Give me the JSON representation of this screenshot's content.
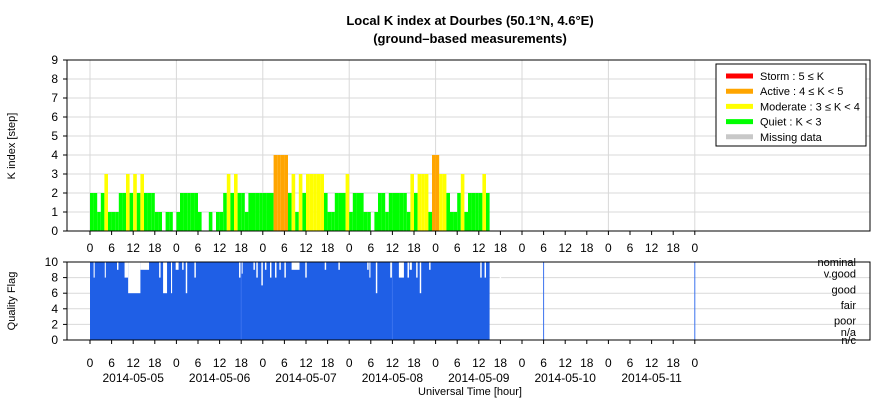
{
  "chart_data": [
    {
      "type": "bar",
      "panel": "k-index",
      "title": "Local K index at Dourbes (50.1°N, 4.6°E)",
      "subtitle": "(ground–based measurements)",
      "ylabel": "K index [step]",
      "xlabel": "",
      "ylim": [
        0,
        9
      ],
      "yticks": [
        "0",
        "1",
        "2",
        "3",
        "4",
        "5",
        "6",
        "7",
        "8",
        "9"
      ],
      "x_hour_ticks": [
        "0",
        "6",
        "12",
        "18",
        "0",
        "6",
        "12",
        "18",
        "0",
        "6",
        "12",
        "18",
        "0",
        "6",
        "12",
        "18",
        "0",
        "6",
        "12",
        "18",
        "0",
        "6",
        "12",
        "18",
        "0",
        "6",
        "12",
        "18",
        "0"
      ],
      "grid": true,
      "legend_position": "top-right",
      "legend": [
        {
          "label": "Storm : 5 ≤ K",
          "color": "#ff0000"
        },
        {
          "label": "Active : 4 ≤ K < 5",
          "color": "#ffa500"
        },
        {
          "label": "Moderate : 3 ≤ K < 4",
          "color": "#ffff00"
        },
        {
          "label": "Quiet : K < 3",
          "color": "#00ff00"
        },
        {
          "label": "Missing data",
          "color": "#c8c8c8"
        }
      ],
      "colors": {
        "storm": "#ff0000",
        "active": "#ffa500",
        "moderate": "#ffff00",
        "quiet": "#00ff00",
        "missing": "#c8c8c8"
      },
      "bar_width_hours": 1,
      "values": [
        2,
        2,
        1,
        2,
        3,
        1,
        1,
        1,
        2,
        2,
        3,
        2,
        3,
        2,
        3,
        2,
        2,
        2,
        1,
        1,
        0,
        1,
        1,
        0,
        1,
        2,
        2,
        2,
        2,
        2,
        1,
        0,
        0,
        1,
        0,
        1,
        1,
        2,
        3,
        2,
        3,
        2,
        2,
        1,
        2,
        2,
        2,
        2,
        2,
        2,
        2,
        4,
        4,
        4,
        4,
        2,
        3,
        1,
        3,
        2,
        3,
        3,
        3,
        3,
        3,
        2,
        1,
        1,
        2,
        2,
        2,
        3,
        1,
        2,
        2,
        2,
        1,
        1,
        0,
        1,
        2,
        2,
        1,
        2,
        2,
        2,
        2,
        2,
        1,
        3,
        2,
        3,
        3,
        3,
        1,
        4,
        4,
        3,
        3,
        2,
        1,
        1,
        2,
        3,
        1,
        2,
        2,
        2,
        2,
        3,
        2
      ]
    },
    {
      "type": "bar",
      "panel": "quality-flag",
      "ylabel": "Quality Flag",
      "xlabel": "Universal Time [hour]",
      "ylim": [
        0,
        10
      ],
      "yticks": [
        "0",
        "2",
        "4",
        "6",
        "8",
        "10"
      ],
      "flag_labels": [
        {
          "label": "nominal",
          "y": 10
        },
        {
          "label": "v.good",
          "y": 8.5
        },
        {
          "label": "good",
          "y": 6.5
        },
        {
          "label": "fair",
          "y": 4.5
        },
        {
          "label": "poor",
          "y": 2.5
        },
        {
          "label": "n/a",
          "y": 1.0
        },
        {
          "label": "n/c",
          "y": 0
        }
      ],
      "x_hour_ticks": [
        "0",
        "6",
        "12",
        "18",
        "0",
        "6",
        "12",
        "18",
        "0",
        "6",
        "12",
        "18",
        "0",
        "6",
        "12",
        "18",
        "0",
        "6",
        "12",
        "18",
        "0",
        "6",
        "12",
        "18",
        "0",
        "6",
        "12",
        "18",
        "0"
      ],
      "date_labels": [
        "2014-05-05",
        "2014-05-06",
        "2014-05-07",
        "2014-05-08",
        "2014-05-09",
        "2014-05-10",
        "2014-05-11"
      ],
      "bar_color": "#1f5fe6",
      "gaps": [
        {
          "from": 1.0,
          "to": 1.3,
          "value": 8
        },
        {
          "from": 4.1,
          "to": 4.4,
          "value": 8
        },
        {
          "from": 7.5,
          "to": 7.9,
          "value": 9
        },
        {
          "from": 9.6,
          "to": 10.6,
          "value": 8
        },
        {
          "from": 10.6,
          "to": 14.0,
          "value": 6
        },
        {
          "from": 14.0,
          "to": 16.4,
          "value": 9
        },
        {
          "from": 19.2,
          "to": 19.6,
          "value": 8
        },
        {
          "from": 20.3,
          "to": 21.4,
          "value": 6
        },
        {
          "from": 22.5,
          "to": 22.8,
          "value": 6
        },
        {
          "from": 23.8,
          "to": 24.6,
          "value": 9
        },
        {
          "from": 25.6,
          "to": 26.0,
          "value": 9
        },
        {
          "from": 26.6,
          "to": 27.0,
          "value": 6
        },
        {
          "from": 29.0,
          "to": 29.4,
          "value": 8
        },
        {
          "from": 41.4,
          "to": 41.8,
          "value": 8
        },
        {
          "from": 42.0,
          "to": 42.4,
          "value": 8.5
        },
        {
          "from": 45.4,
          "to": 45.8,
          "value": 9
        },
        {
          "from": 46.2,
          "to": 46.6,
          "value": 8
        },
        {
          "from": 47.6,
          "to": 48.0,
          "value": 7
        },
        {
          "from": 48.6,
          "to": 49.0,
          "value": 9
        },
        {
          "from": 50.0,
          "to": 50.4,
          "value": 8
        },
        {
          "from": 51.4,
          "to": 51.8,
          "value": 8
        },
        {
          "from": 52.6,
          "to": 53.0,
          "value": 9
        },
        {
          "from": 54.0,
          "to": 54.4,
          "value": 8
        },
        {
          "from": 56.0,
          "to": 58.2,
          "value": 9
        },
        {
          "from": 59.8,
          "to": 60.2,
          "value": 8
        },
        {
          "from": 65.2,
          "to": 65.6,
          "value": 9
        },
        {
          "from": 69.0,
          "to": 69.4,
          "value": 9
        },
        {
          "from": 77.0,
          "to": 77.4,
          "value": 9
        },
        {
          "from": 77.6,
          "to": 77.9,
          "value": 8
        },
        {
          "from": 79.4,
          "to": 79.8,
          "value": 6
        },
        {
          "from": 83.4,
          "to": 84.0,
          "value": 8
        },
        {
          "from": 85.8,
          "to": 87.2,
          "value": 8
        },
        {
          "from": 88.2,
          "to": 88.6,
          "value": 8
        },
        {
          "from": 88.8,
          "to": 89.4,
          "value": 9
        },
        {
          "from": 90.6,
          "to": 91.0,
          "value": 8
        },
        {
          "from": 91.6,
          "to": 92.0,
          "value": 6
        },
        {
          "from": 94.2,
          "to": 94.6,
          "value": 9
        },
        {
          "from": 108.4,
          "to": 108.8,
          "value": 8
        },
        {
          "from": 109.6,
          "to": 110.0,
          "value": 8
        },
        {
          "from": 112.0,
          "to": 112.4,
          "value": 9
        },
        {
          "from": 113.8,
          "to": 114.2,
          "value": 7
        }
      ]
    }
  ]
}
